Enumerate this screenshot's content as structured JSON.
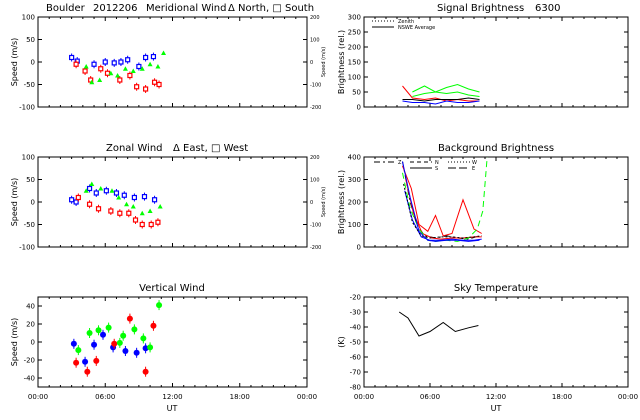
{
  "header": {
    "site": "Boulder",
    "date": "2012206",
    "merid_title": "Meridional Wind",
    "merid_leg": "Δ North, □ South",
    "zonal_title": "Zonal Wind",
    "zonal_leg": "Δ East, □ West",
    "vert_title": "Vertical Wind",
    "signal_title": "Signal Brightness",
    "signal_wl": "6300",
    "bg_title": "Background Brightness",
    "sky_title": "Sky Temperature"
  },
  "axes": {
    "speed": "Speed (m/s)",
    "speed_rot": "Speed (m/s)",
    "bright": "Brightness (rel.)",
    "kelvin": "(K)",
    "ut": "UT",
    "time_ticks": [
      "00:00",
      "06:00",
      "12:00",
      "18:00",
      "00:00"
    ]
  },
  "legends": {
    "signal": [
      "Zenith",
      "NSWE Average"
    ],
    "bg": [
      "Z",
      "N",
      "S",
      "W",
      "E"
    ]
  },
  "chart_data": [
    {
      "id": "meridional",
      "type": "scatter",
      "title": "Meridional Wind",
      "xlabel": "",
      "ylabel": "Speed (m/s)",
      "xlim": [
        0,
        24
      ],
      "ylim": [
        -100,
        100
      ],
      "y2label": "Speed (m/s)",
      "y2lim": [
        -200,
        200
      ],
      "yticks": [
        -100,
        -50,
        0,
        50,
        100
      ],
      "y2ticks": [
        -200,
        -100,
        0,
        100,
        200
      ],
      "series": [
        {
          "color": "#0000ff",
          "marker": "square",
          "points": [
            [
              3,
              10
            ],
            [
              3.5,
              2
            ],
            [
              5,
              -5
            ],
            [
              6,
              0
            ],
            [
              6.8,
              -2
            ],
            [
              7.4,
              0
            ],
            [
              8,
              5
            ],
            [
              9,
              -10
            ],
            [
              9.6,
              10
            ],
            [
              10.3,
              12
            ]
          ]
        },
        {
          "color": "#ff0000",
          "marker": "square",
          "points": [
            [
              3.4,
              -5
            ],
            [
              4.2,
              -20
            ],
            [
              4.7,
              -40
            ],
            [
              5.6,
              -15
            ],
            [
              6.2,
              -25
            ],
            [
              7.3,
              -40
            ],
            [
              8.2,
              -30
            ],
            [
              8.8,
              -55
            ],
            [
              9.6,
              -60
            ],
            [
              10.4,
              -45
            ],
            [
              10.8,
              -50
            ]
          ]
        },
        {
          "color": "#00ff00",
          "marker": "triangle",
          "points": [
            [
              4.3,
              -10
            ],
            [
              4.8,
              -45
            ],
            [
              5.5,
              -40
            ],
            [
              6.5,
              -25
            ],
            [
              7.1,
              -30
            ],
            [
              7.8,
              -15
            ],
            [
              8.5,
              -20
            ],
            [
              9.3,
              -15
            ],
            [
              10,
              -5
            ],
            [
              10.7,
              -10
            ],
            [
              11.2,
              20
            ]
          ]
        }
      ]
    },
    {
      "id": "zonal",
      "type": "scatter",
      "title": "Zonal Wind",
      "xlabel": "",
      "ylabel": "Speed (m/s)",
      "xlim": [
        0,
        24
      ],
      "ylim": [
        -100,
        100
      ],
      "y2label": "Speed (m/s)",
      "y2lim": [
        -200,
        200
      ],
      "yticks": [
        -100,
        -50,
        0,
        50,
        100
      ],
      "y2ticks": [
        -200,
        -100,
        0,
        100,
        200
      ],
      "series": [
        {
          "color": "#0000ff",
          "marker": "square",
          "points": [
            [
              3,
              5
            ],
            [
              3.4,
              0
            ],
            [
              4.6,
              30
            ],
            [
              5.2,
              20
            ],
            [
              6.1,
              25
            ],
            [
              7,
              20
            ],
            [
              7.7,
              15
            ],
            [
              8.6,
              10
            ],
            [
              9.5,
              12
            ],
            [
              10.4,
              5
            ]
          ]
        },
        {
          "color": "#ff0000",
          "marker": "square",
          "points": [
            [
              3.6,
              10
            ],
            [
              4.6,
              -5
            ],
            [
              5.4,
              -15
            ],
            [
              6.5,
              -20
            ],
            [
              7.3,
              -25
            ],
            [
              8.1,
              -25
            ],
            [
              8.7,
              -40
            ],
            [
              9.3,
              -50
            ],
            [
              10.1,
              -50
            ],
            [
              10.7,
              -45
            ]
          ]
        },
        {
          "color": "#00ff00",
          "marker": "triangle",
          "points": [
            [
              4.3,
              25
            ],
            [
              4.8,
              40
            ],
            [
              5.6,
              30
            ],
            [
              6.6,
              25
            ],
            [
              7.2,
              10
            ],
            [
              7.9,
              -5
            ],
            [
              8.5,
              -10
            ],
            [
              9.3,
              -25
            ],
            [
              10,
              -20
            ],
            [
              10.9,
              -10
            ]
          ]
        }
      ]
    },
    {
      "id": "vertical",
      "type": "scatter",
      "title": "Vertical Wind",
      "xlabel": "UT",
      "ylabel": "Speed (m/s)",
      "xlim": [
        0,
        24
      ],
      "ylim": [
        -50,
        50
      ],
      "yticks": [
        -40,
        -20,
        0,
        20,
        40
      ],
      "series": [
        {
          "color": "#0000ff",
          "marker": "dot",
          "points": [
            [
              3.2,
              -2
            ],
            [
              4.2,
              -22
            ],
            [
              5,
              -3
            ],
            [
              5.8,
              8
            ],
            [
              6.7,
              -6
            ],
            [
              7.8,
              -10
            ],
            [
              8.8,
              -12
            ],
            [
              9.6,
              -7
            ]
          ]
        },
        {
          "color": "#ff0000",
          "marker": "dot",
          "points": [
            [
              3.4,
              -23
            ],
            [
              4.4,
              -33
            ],
            [
              5.2,
              -21
            ],
            [
              6.8,
              -2
            ],
            [
              8.2,
              26
            ],
            [
              9.6,
              -33
            ],
            [
              10.3,
              18
            ]
          ]
        },
        {
          "color": "#00ff00",
          "marker": "dot",
          "points": [
            [
              3.6,
              -9
            ],
            [
              4.6,
              10
            ],
            [
              5.4,
              13
            ],
            [
              6.3,
              16
            ],
            [
              7.3,
              -1
            ],
            [
              7.6,
              7
            ],
            [
              8.6,
              14
            ],
            [
              9.4,
              4
            ],
            [
              10,
              -6
            ],
            [
              10.8,
              41
            ]
          ]
        }
      ]
    },
    {
      "id": "signal",
      "type": "line",
      "title": "Signal Brightness 6300",
      "xlabel": "",
      "ylabel": "Brightness (rel.)",
      "xlim": [
        0,
        24
      ],
      "ylim": [
        0,
        300
      ],
      "yticks": [
        0,
        50,
        100,
        150,
        200,
        250,
        300
      ],
      "series": [
        {
          "color": "#ff0000",
          "dash": "",
          "points": [
            [
              3.5,
              70
            ],
            [
              4.4,
              30
            ],
            [
              5.5,
              25
            ],
            [
              6.5,
              30
            ],
            [
              7.5,
              20
            ],
            [
              8.5,
              25
            ],
            [
              9.5,
              20
            ],
            [
              10.5,
              20
            ]
          ]
        },
        {
          "color": "#000000",
          "dash": "",
          "points": [
            [
              3.5,
              25
            ],
            [
              4.4,
              25
            ],
            [
              5.5,
              20
            ],
            [
              6.5,
              25
            ],
            [
              7.5,
              25
            ],
            [
              8.5,
              25
            ],
            [
              9.5,
              30
            ],
            [
              10.5,
              25
            ]
          ]
        },
        {
          "color": "#0000ff",
          "dash": "",
          "points": [
            [
              3.5,
              20
            ],
            [
              4.4,
              15
            ],
            [
              5.5,
              15
            ],
            [
              6.5,
              10
            ],
            [
              7.5,
              20
            ],
            [
              8.5,
              15
            ],
            [
              9.5,
              15
            ],
            [
              10.5,
              20
            ]
          ]
        },
        {
          "color": "#00ff00",
          "dash": "",
          "points": [
            [
              4.4,
              50
            ],
            [
              5.5,
              70
            ],
            [
              6.5,
              50
            ],
            [
              7.5,
              65
            ],
            [
              8.5,
              75
            ],
            [
              9.5,
              60
            ],
            [
              10.5,
              50
            ]
          ]
        },
        {
          "color": "#00ff00",
          "dash": "",
          "points": [
            [
              4.4,
              35
            ],
            [
              5.5,
              45
            ],
            [
              6.5,
              50
            ],
            [
              7.5,
              45
            ],
            [
              8.5,
              50
            ],
            [
              9.5,
              40
            ],
            [
              10.5,
              35
            ]
          ]
        }
      ]
    },
    {
      "id": "background",
      "type": "line",
      "title": "Background Brightness",
      "xlabel": "",
      "ylabel": "Brightness (rel.)",
      "xlim": [
        0,
        24
      ],
      "ylim": [
        0,
        400
      ],
      "yticks": [
        0,
        100,
        200,
        300,
        400
      ],
      "series": [
        {
          "name": "Z",
          "color": "#000000",
          "dash": "6 3 2 3",
          "points": [
            [
              3.5,
              380
            ],
            [
              4.2,
              200
            ],
            [
              4.8,
              100
            ],
            [
              5.5,
              50
            ],
            [
              6.5,
              40
            ],
            [
              7.5,
              50
            ],
            [
              8.5,
              40
            ],
            [
              9.5,
              35
            ],
            [
              10.5,
              50
            ]
          ]
        },
        {
          "name": "N",
          "color": "#ff0000",
          "dash": "",
          "points": [
            [
              3.5,
              360
            ],
            [
              4.3,
              260
            ],
            [
              5,
              100
            ],
            [
              5.8,
              70
            ],
            [
              6.5,
              140
            ],
            [
              7.2,
              50
            ],
            [
              8,
              60
            ],
            [
              9,
              210
            ],
            [
              10,
              80
            ],
            [
              10.7,
              60
            ]
          ]
        },
        {
          "name": "N",
          "color": "#ff0000",
          "dash": "",
          "points": [
            [
              3.8,
              300
            ],
            [
              4.5,
              150
            ],
            [
              5.3,
              60
            ],
            [
              6.2,
              40
            ],
            [
              7,
              35
            ],
            [
              8,
              40
            ],
            [
              9,
              40
            ],
            [
              10,
              45
            ],
            [
              10.7,
              45
            ]
          ]
        },
        {
          "name": "S",
          "color": "#00ff00",
          "dash": "6 4",
          "points": [
            [
              3.5,
              330
            ],
            [
              4.2,
              170
            ],
            [
              5,
              80
            ],
            [
              5.8,
              30
            ],
            [
              6.5,
              25
            ],
            [
              7.5,
              30
            ],
            [
              8.5,
              25
            ],
            [
              9.5,
              40
            ],
            [
              10.3,
              80
            ],
            [
              10.8,
              160
            ],
            [
              11.2,
              400
            ]
          ]
        },
        {
          "name": "W",
          "color": "#0000ff",
          "dash": "",
          "points": [
            [
              3.5,
              380
            ],
            [
              4.2,
              220
            ],
            [
              5,
              70
            ],
            [
              5.8,
              30
            ],
            [
              6.5,
              25
            ],
            [
              7.5,
              30
            ],
            [
              8.5,
              30
            ],
            [
              9.5,
              25
            ],
            [
              10.5,
              30
            ]
          ]
        },
        {
          "name": "W",
          "color": "#0000ff",
          "dash": "",
          "points": [
            [
              3.7,
              250
            ],
            [
              4.4,
              120
            ],
            [
              5.2,
              45
            ],
            [
              6,
              30
            ],
            [
              7,
              30
            ],
            [
              8,
              35
            ],
            [
              9,
              30
            ],
            [
              10,
              30
            ],
            [
              10.7,
              35
            ]
          ]
        },
        {
          "name": "E",
          "color": "#000000",
          "dash": "2 2",
          "points": [
            [
              3.6,
              280
            ],
            [
              4.4,
              110
            ],
            [
              5.2,
              50
            ],
            [
              6,
              40
            ],
            [
              7,
              45
            ],
            [
              8,
              45
            ],
            [
              9,
              40
            ],
            [
              10,
              45
            ],
            [
              10.7,
              50
            ]
          ]
        }
      ]
    },
    {
      "id": "sky",
      "type": "line",
      "title": "Sky Temperature",
      "xlabel": "UT",
      "ylabel": "(K)",
      "xlim": [
        0,
        24
      ],
      "ylim": [
        -80,
        -20
      ],
      "yticks": [
        -80,
        -70,
        -60,
        -50,
        -40,
        -30,
        -20
      ],
      "series": [
        {
          "color": "#000000",
          "dash": "",
          "points": [
            [
              3.2,
              -30
            ],
            [
              4,
              -34
            ],
            [
              5,
              -46
            ],
            [
              6,
              -43
            ],
            [
              7.2,
              -37
            ],
            [
              8.3,
              -43
            ],
            [
              9.5,
              -40.5
            ],
            [
              10.4,
              -39
            ]
          ]
        }
      ]
    }
  ]
}
